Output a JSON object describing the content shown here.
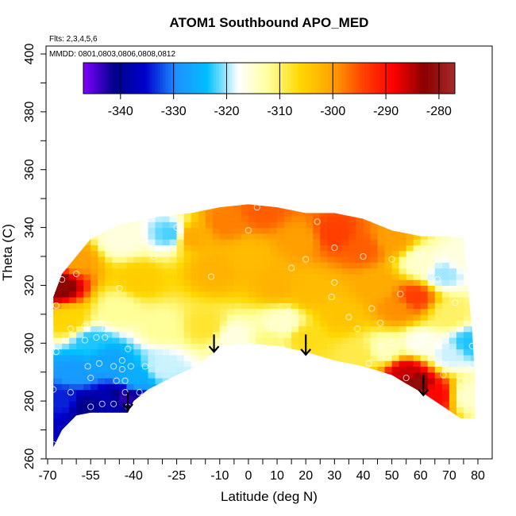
{
  "chart_data": {
    "type": "heatmap",
    "title": "ATOM1 Southbound APO_MED",
    "annotations": {
      "flights": "Flts: 2,3,4,5,6",
      "dates": "MMDD: 0801,0803,0806,0808,0812"
    },
    "xlabel": "Latitude (deg N)",
    "ylabel": "Theta (C)",
    "xlim": [
      -70,
      80
    ],
    "ylim": [
      260,
      400
    ],
    "x_ticks": [
      -70,
      -55,
      -40,
      -25,
      -10,
      0,
      10,
      20,
      30,
      40,
      50,
      60,
      70,
      80
    ],
    "x_tick_labels": [
      "-70",
      "-55",
      "-40",
      "-25",
      "-10",
      "0",
      "10",
      "20",
      "30",
      "40",
      "50",
      "60",
      "70",
      "80"
    ],
    "y_ticks": [
      260,
      280,
      300,
      320,
      340,
      360,
      380,
      400
    ],
    "y_tick_labels": [
      "260",
      "280",
      "300",
      "320",
      "340",
      "360",
      "380",
      "400"
    ],
    "colorbar": {
      "range": [
        -347,
        -277
      ],
      "ticks": [
        -340,
        -330,
        -320,
        -310,
        -300,
        -290,
        -280
      ],
      "tick_labels": [
        "-340",
        "-330",
        "-320",
        "-310",
        "-300",
        "-290",
        "-280"
      ],
      "colors": [
        "#7f00ff",
        "#00008b",
        "#0000cd",
        "#1e90ff",
        "#00bfff",
        "#ffffff",
        "#ffff99",
        "#ffd700",
        "#ffa500",
        "#ff4500",
        "#ff0000",
        "#8b0000",
        "#a52a2a"
      ]
    },
    "grid": false,
    "outline_top": [
      [
        -68,
        316
      ],
      [
        -65,
        324
      ],
      [
        -60,
        330
      ],
      [
        -55,
        336
      ],
      [
        -45,
        341
      ],
      [
        -30,
        344
      ],
      [
        -20,
        345
      ],
      [
        -10,
        347
      ],
      [
        0,
        348
      ],
      [
        10,
        347
      ],
      [
        20,
        345
      ],
      [
        30,
        345
      ],
      [
        40,
        343
      ],
      [
        50,
        339
      ],
      [
        60,
        337
      ],
      [
        70,
        337
      ],
      [
        75,
        336
      ],
      [
        78,
        304
      ],
      [
        79,
        288
      ],
      [
        79,
        274
      ]
    ],
    "outline_bottom": [
      [
        79,
        274
      ],
      [
        74,
        274
      ],
      [
        68,
        278
      ],
      [
        62,
        282
      ],
      [
        55,
        286
      ],
      [
        50,
        289
      ],
      [
        40,
        292
      ],
      [
        30,
        294
      ],
      [
        20,
        297
      ],
      [
        10,
        299
      ],
      [
        0,
        300
      ],
      [
        -10,
        299
      ],
      [
        -12,
        297
      ],
      [
        -18,
        292
      ],
      [
        -25,
        289
      ],
      [
        -35,
        284
      ],
      [
        -40,
        280
      ],
      [
        -42,
        276
      ],
      [
        -45,
        276
      ],
      [
        -55,
        276
      ],
      [
        -60,
        275
      ],
      [
        -65,
        270
      ],
      [
        -68,
        264
      ]
    ],
    "regions": [
      {
        "x": -66,
        "y": 320,
        "value": -282
      },
      {
        "x": -60,
        "y": 329,
        "value": -300
      },
      {
        "x": -63,
        "y": 308,
        "value": -306
      },
      {
        "x": -55,
        "y": 300,
        "value": -323
      },
      {
        "x": -60,
        "y": 290,
        "value": -328
      },
      {
        "x": -64,
        "y": 280,
        "value": -334
      },
      {
        "x": -57,
        "y": 278,
        "value": -341
      },
      {
        "x": -48,
        "y": 279,
        "value": -338
      },
      {
        "x": -43,
        "y": 281,
        "value": -343
      },
      {
        "x": -50,
        "y": 294,
        "value": -327
      },
      {
        "x": -40,
        "y": 288,
        "value": -326
      },
      {
        "x": -30,
        "y": 292,
        "value": -319
      },
      {
        "x": -45,
        "y": 312,
        "value": -312
      },
      {
        "x": -45,
        "y": 336,
        "value": -316
      },
      {
        "x": -38,
        "y": 322,
        "value": -305
      },
      {
        "x": -30,
        "y": 306,
        "value": -312
      },
      {
        "x": -27,
        "y": 338,
        "value": -322
      },
      {
        "x": -20,
        "y": 337,
        "value": -301
      },
      {
        "x": -12,
        "y": 325,
        "value": -302
      },
      {
        "x": -15,
        "y": 306,
        "value": -308
      },
      {
        "x": -5,
        "y": 302,
        "value": -316
      },
      {
        "x": -8,
        "y": 342,
        "value": -298
      },
      {
        "x": 0,
        "y": 330,
        "value": -303
      },
      {
        "x": 5,
        "y": 346,
        "value": -296
      },
      {
        "x": 10,
        "y": 320,
        "value": -302
      },
      {
        "x": 12,
        "y": 307,
        "value": -315
      },
      {
        "x": 8,
        "y": 300,
        "value": -311
      },
      {
        "x": 18,
        "y": 336,
        "value": -300
      },
      {
        "x": 22,
        "y": 318,
        "value": -303
      },
      {
        "x": 20,
        "y": 302,
        "value": -307
      },
      {
        "x": 30,
        "y": 338,
        "value": -294
      },
      {
        "x": 32,
        "y": 310,
        "value": -304
      },
      {
        "x": 38,
        "y": 296,
        "value": -309
      },
      {
        "x": 40,
        "y": 333,
        "value": -296
      },
      {
        "x": 45,
        "y": 320,
        "value": -301
      },
      {
        "x": 50,
        "y": 336,
        "value": -300
      },
      {
        "x": 52,
        "y": 312,
        "value": -299
      },
      {
        "x": 48,
        "y": 298,
        "value": -314
      },
      {
        "x": 55,
        "y": 290,
        "value": -286
      },
      {
        "x": 58,
        "y": 286,
        "value": -281
      },
      {
        "x": 65,
        "y": 282,
        "value": -289
      },
      {
        "x": 60,
        "y": 300,
        "value": -317
      },
      {
        "x": 58,
        "y": 316,
        "value": -294
      },
      {
        "x": 60,
        "y": 328,
        "value": -315
      },
      {
        "x": 68,
        "y": 324,
        "value": -320
      },
      {
        "x": 70,
        "y": 310,
        "value": -310
      },
      {
        "x": 70,
        "y": 296,
        "value": -319
      },
      {
        "x": 75,
        "y": 330,
        "value": -316
      },
      {
        "x": 77,
        "y": 300,
        "value": -323
      },
      {
        "x": 77,
        "y": 282,
        "value": -315
      }
    ],
    "observation_points": [
      [
        -68,
        265
      ],
      [
        -68,
        284
      ],
      [
        -67,
        297
      ],
      [
        -67,
        313
      ],
      [
        -62,
        305
      ],
      [
        -57,
        301
      ],
      [
        -56,
        292
      ],
      [
        -53,
        302
      ],
      [
        -52,
        293
      ],
      [
        -51,
        279
      ],
      [
        -47,
        292
      ],
      [
        -47,
        279
      ],
      [
        -44,
        294
      ],
      [
        -44,
        291
      ],
      [
        -43,
        287
      ],
      [
        -43,
        283
      ],
      [
        -42,
        278
      ],
      [
        -42,
        298
      ],
      [
        -41,
        292
      ],
      [
        -41,
        303
      ],
      [
        -38,
        283
      ],
      [
        -50,
        305
      ],
      [
        -55,
        278
      ],
      [
        -25,
        340
      ],
      [
        -13,
        323
      ],
      [
        -8,
        302
      ],
      [
        0,
        299
      ],
      [
        0,
        339
      ],
      [
        -5,
        305
      ],
      [
        7,
        306
      ],
      [
        12,
        298
      ],
      [
        14,
        311
      ],
      [
        15,
        326
      ],
      [
        20,
        329
      ],
      [
        24,
        342
      ],
      [
        29,
        316
      ],
      [
        30,
        321
      ],
      [
        35,
        309
      ],
      [
        38,
        305
      ],
      [
        42,
        293
      ],
      [
        43,
        312
      ],
      [
        46,
        307
      ],
      [
        46,
        299
      ],
      [
        50,
        300
      ],
      [
        53,
        317
      ],
      [
        55,
        288
      ],
      [
        60,
        331
      ],
      [
        62,
        303
      ],
      [
        66,
        322
      ],
      [
        68,
        289
      ],
      [
        72,
        314
      ],
      [
        74,
        287
      ],
      [
        77,
        291
      ],
      [
        78,
        299
      ],
      [
        -65,
        322
      ],
      [
        -60,
        324
      ],
      [
        -57,
        306
      ],
      [
        -50,
        302
      ],
      [
        -33,
        330
      ],
      [
        3,
        347
      ],
      [
        30,
        333
      ],
      [
        40,
        330
      ],
      [
        50,
        329
      ],
      [
        65,
        330
      ],
      [
        -45,
        319
      ],
      [
        -46,
        287
      ],
      [
        -36,
        292
      ],
      [
        -62,
        283
      ],
      [
        -55,
        288
      ]
    ],
    "arrows": [
      {
        "x": -42,
        "y_top": 283,
        "y_bottom": 277
      },
      {
        "x": -12,
        "y_top": 303,
        "y_bottom": 297
      },
      {
        "x": 20,
        "y_top": 303,
        "y_bottom": 296
      },
      {
        "x": 61,
        "y_top": 289,
        "y_bottom": 282
      }
    ]
  }
}
